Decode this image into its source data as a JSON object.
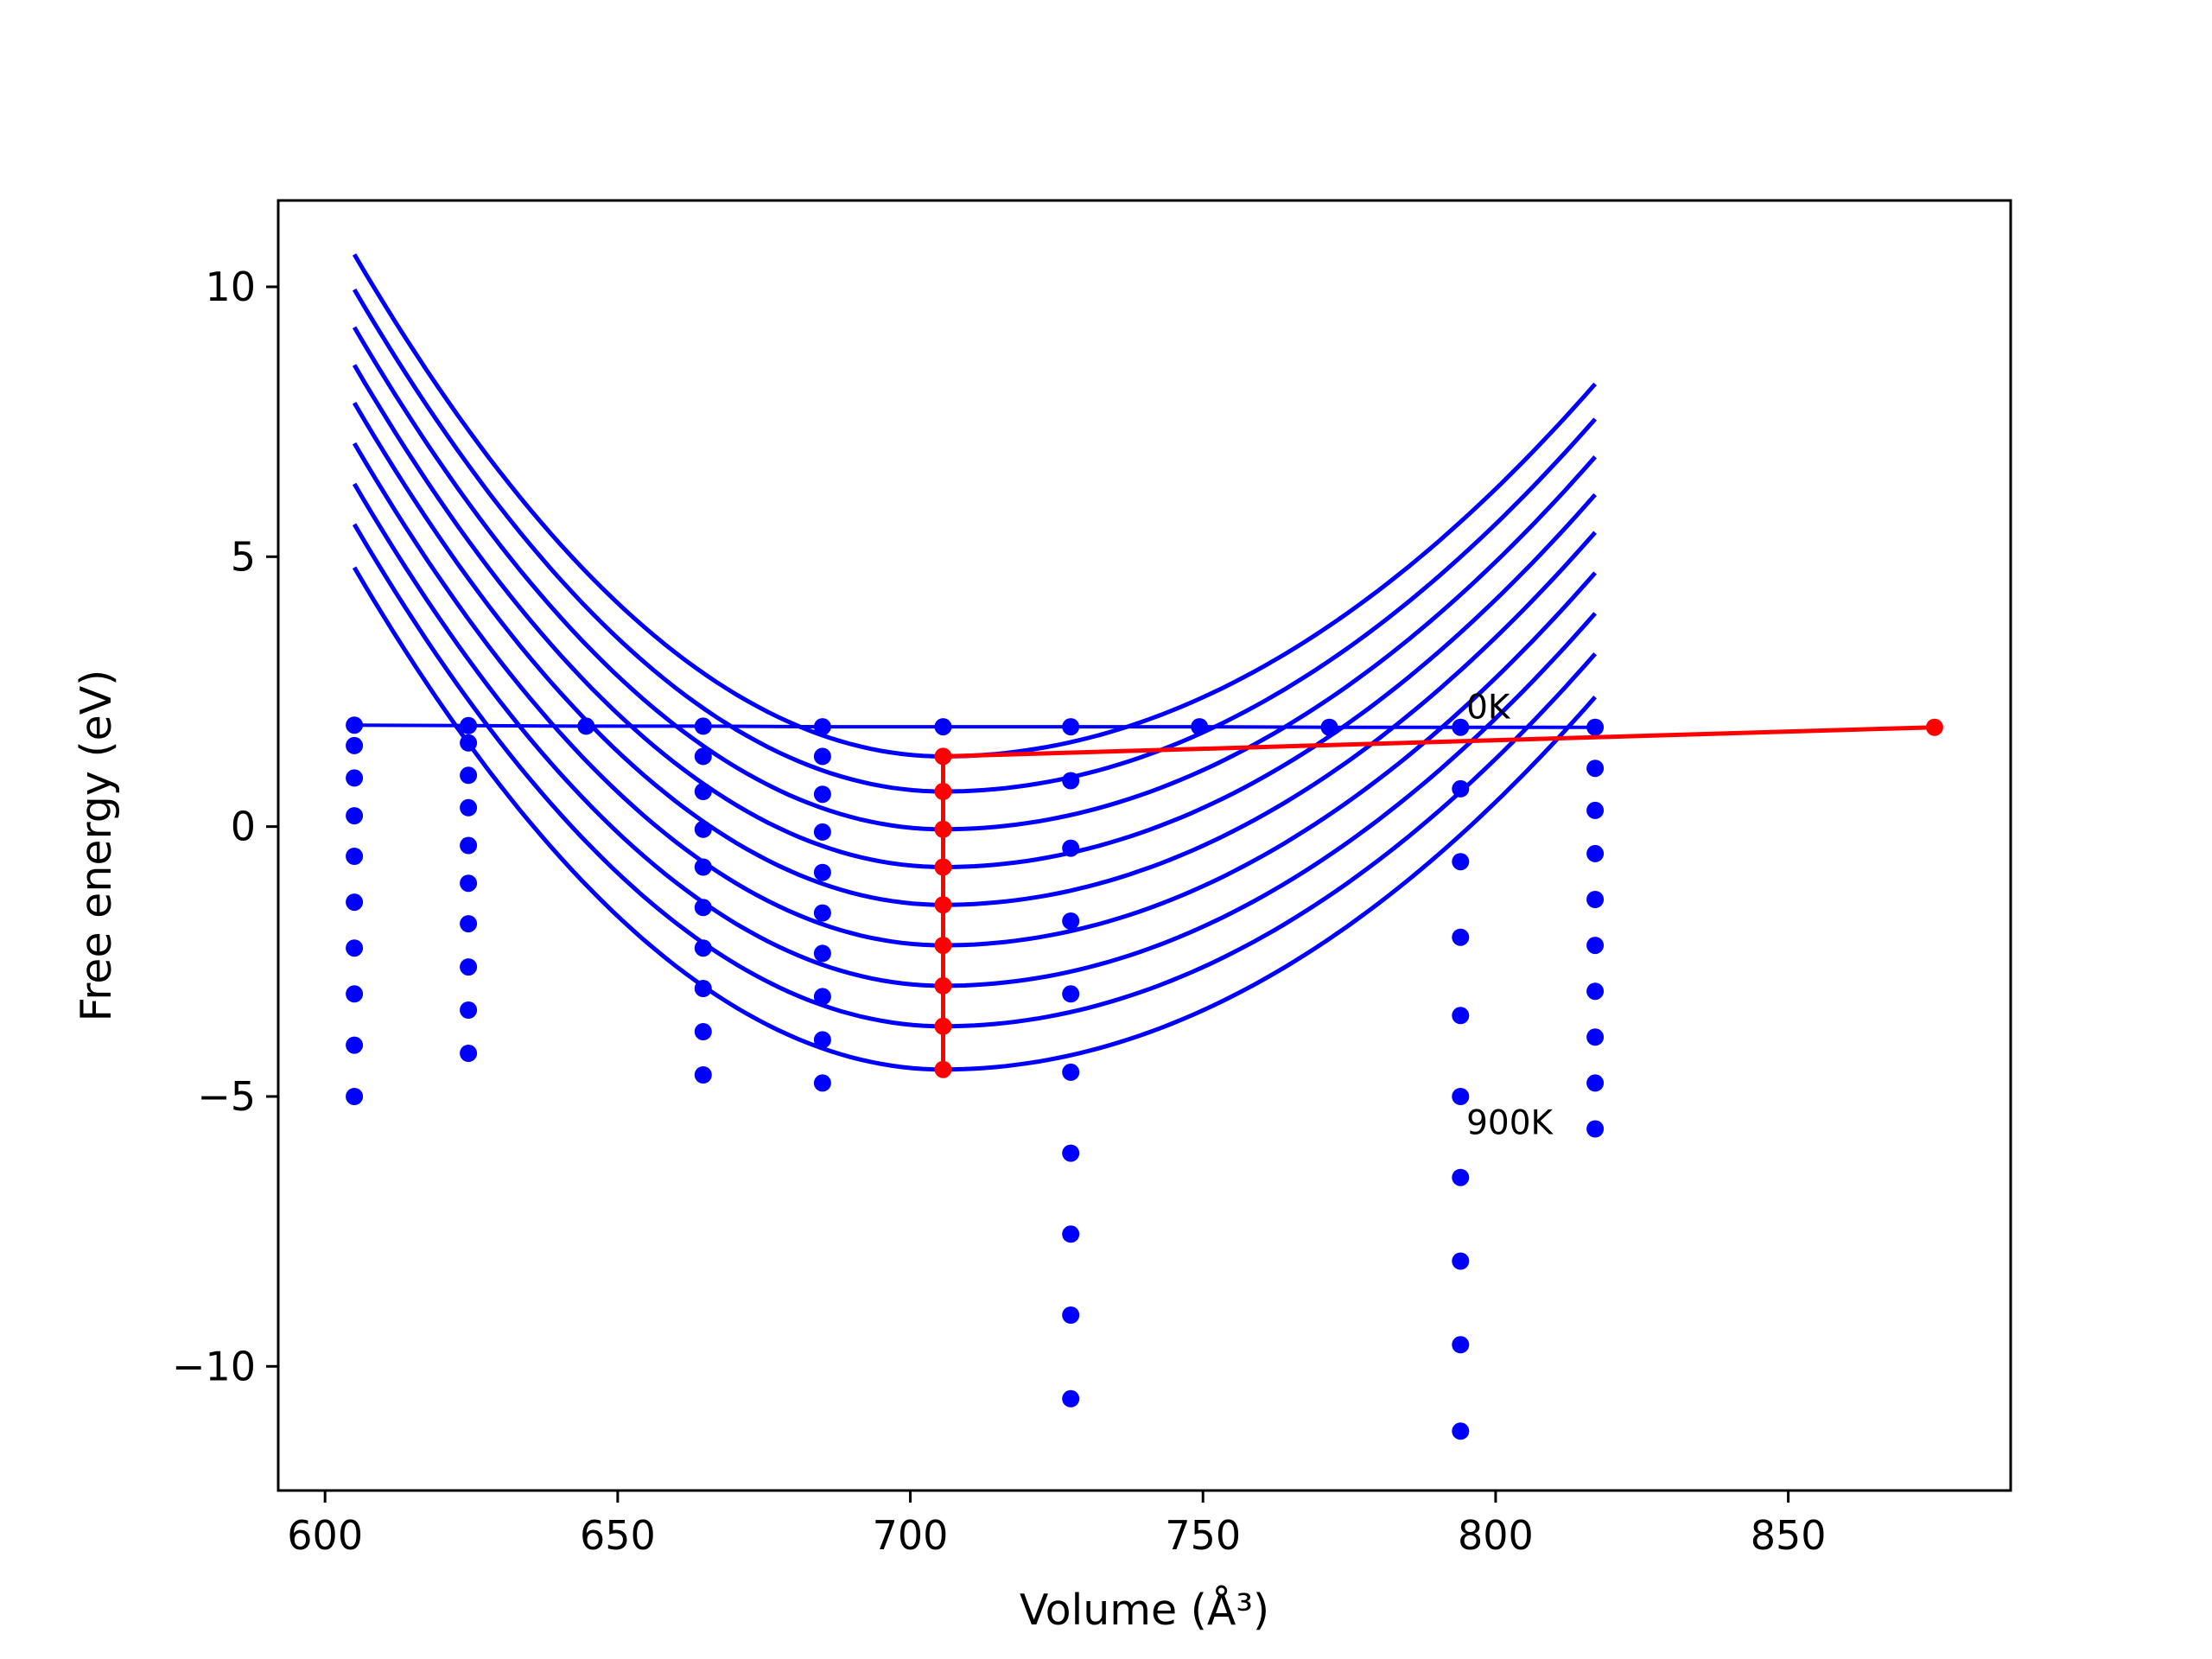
{
  "chart_data": {
    "type": "scatter",
    "title": "",
    "xlabel": "Volume (Å³)",
    "ylabel": "Free energy (eV)",
    "xlim": [
      592,
      888
    ],
    "ylim": [
      -12.3,
      11.6
    ],
    "x_ticks": [
      600,
      650,
      700,
      750,
      800,
      850
    ],
    "y_ticks": [
      10,
      5,
      0,
      -5,
      -10
    ],
    "x_tick_labels": [
      "600",
      "650",
      "700",
      "750",
      "800",
      "850"
    ],
    "y_tick_labels": [
      "10",
      "5",
      "0",
      "−5",
      "−10"
    ],
    "grid": false,
    "legend": "none",
    "colors": {
      "fit_curves": "#0000ff",
      "points": "#0000ff",
      "minimum_path": "#ff0000",
      "axes": "#000000"
    },
    "fitted_curves": {
      "color": "#0000ff",
      "x_range": [
        605,
        817
      ],
      "curves": [
        {
          "v0": 705.6,
          "f_min": 1.3,
          "f_left": 10.6,
          "f_right": 8.2
        },
        {
          "v0": 705.6,
          "f_min": 0.65,
          "f_left": 9.95,
          "f_right": 7.55
        },
        {
          "v0": 705.6,
          "f_min": -0.05,
          "f_left": 9.25,
          "f_right": 6.85
        },
        {
          "v0": 705.6,
          "f_min": -0.75,
          "f_left": 8.55,
          "f_right": 6.15
        },
        {
          "v0": 705.6,
          "f_min": -1.45,
          "f_left": 7.85,
          "f_right": 5.45
        },
        {
          "v0": 705.6,
          "f_min": -2.2,
          "f_left": 7.1,
          "f_right": 4.7
        },
        {
          "v0": 705.6,
          "f_min": -2.95,
          "f_left": 6.35,
          "f_right": 3.95
        },
        {
          "v0": 705.6,
          "f_min": -3.7,
          "f_left": 5.6,
          "f_right": 3.2
        },
        {
          "v0": 705.6,
          "f_min": -4.5,
          "f_left": 4.8,
          "f_right": 2.4
        }
      ]
    },
    "zero_kelvin_line": {
      "color": "#0000ff",
      "x": [
        605,
        624.5,
        644.6,
        664.6,
        685,
        705.6,
        727.4,
        749.4,
        771.6,
        794,
        817
      ],
      "y": [
        1.88,
        1.87,
        1.86,
        1.86,
        1.85,
        1.85,
        1.85,
        1.85,
        1.84,
        1.84,
        1.84
      ]
    },
    "point_columns": [
      {
        "x": 605,
        "y": [
          1.88,
          1.5,
          0.9,
          0.2,
          -0.55,
          -1.4,
          -2.25,
          -3.1,
          -4.05,
          -5.0
        ]
      },
      {
        "x": 624.5,
        "y": [
          1.87,
          1.55,
          0.95,
          0.35,
          -0.35,
          -1.05,
          -1.8,
          -2.6,
          -3.4,
          -4.2
        ]
      },
      {
        "x": 644.6,
        "y": [
          1.86
        ]
      },
      {
        "x": 664.6,
        "y": [
          1.86,
          1.3,
          0.65,
          -0.05,
          -0.75,
          -1.5,
          -2.25,
          -3.0,
          -3.8,
          -4.6
        ]
      },
      {
        "x": 685,
        "y": [
          1.85,
          1.3,
          0.6,
          -0.1,
          -0.85,
          -1.6,
          -2.35,
          -3.15,
          -3.95,
          -4.75
        ]
      },
      {
        "x": 705.6,
        "y": [
          1.85
        ]
      },
      {
        "x": 727.4,
        "y": [
          1.85,
          0.85,
          -0.4,
          -1.75,
          -3.1,
          -4.55,
          -6.05,
          -7.55,
          -9.05,
          -10.6
        ]
      },
      {
        "x": 749.4,
        "y": [
          1.85
        ]
      },
      {
        "x": 771.6,
        "y": [
          1.84
        ]
      },
      {
        "x": 794,
        "y": [
          1.84,
          0.7,
          -0.65,
          -2.05,
          -3.5,
          -5.0,
          -6.5,
          -8.05,
          -9.6,
          -11.2
        ]
      },
      {
        "x": 817,
        "y": [
          1.84,
          1.08,
          0.3,
          -0.5,
          -1.35,
          -2.2,
          -3.05,
          -3.9,
          -4.75,
          -5.6
        ]
      }
    ],
    "minimum_path": {
      "color": "#ff0000",
      "vertical": {
        "x": 705.6,
        "y": [
          1.3,
          0.65,
          -0.05,
          -0.75,
          -1.45,
          -2.2,
          -2.95,
          -3.7,
          -4.5
        ]
      },
      "tail": {
        "x": [
          705.6,
          875
        ],
        "y": [
          1.3,
          1.84
        ]
      }
    },
    "annotations": [
      {
        "text": "0K",
        "x": 795,
        "y": 2.0
      },
      {
        "text": "900K",
        "x": 795,
        "y": -5.7
      }
    ]
  }
}
